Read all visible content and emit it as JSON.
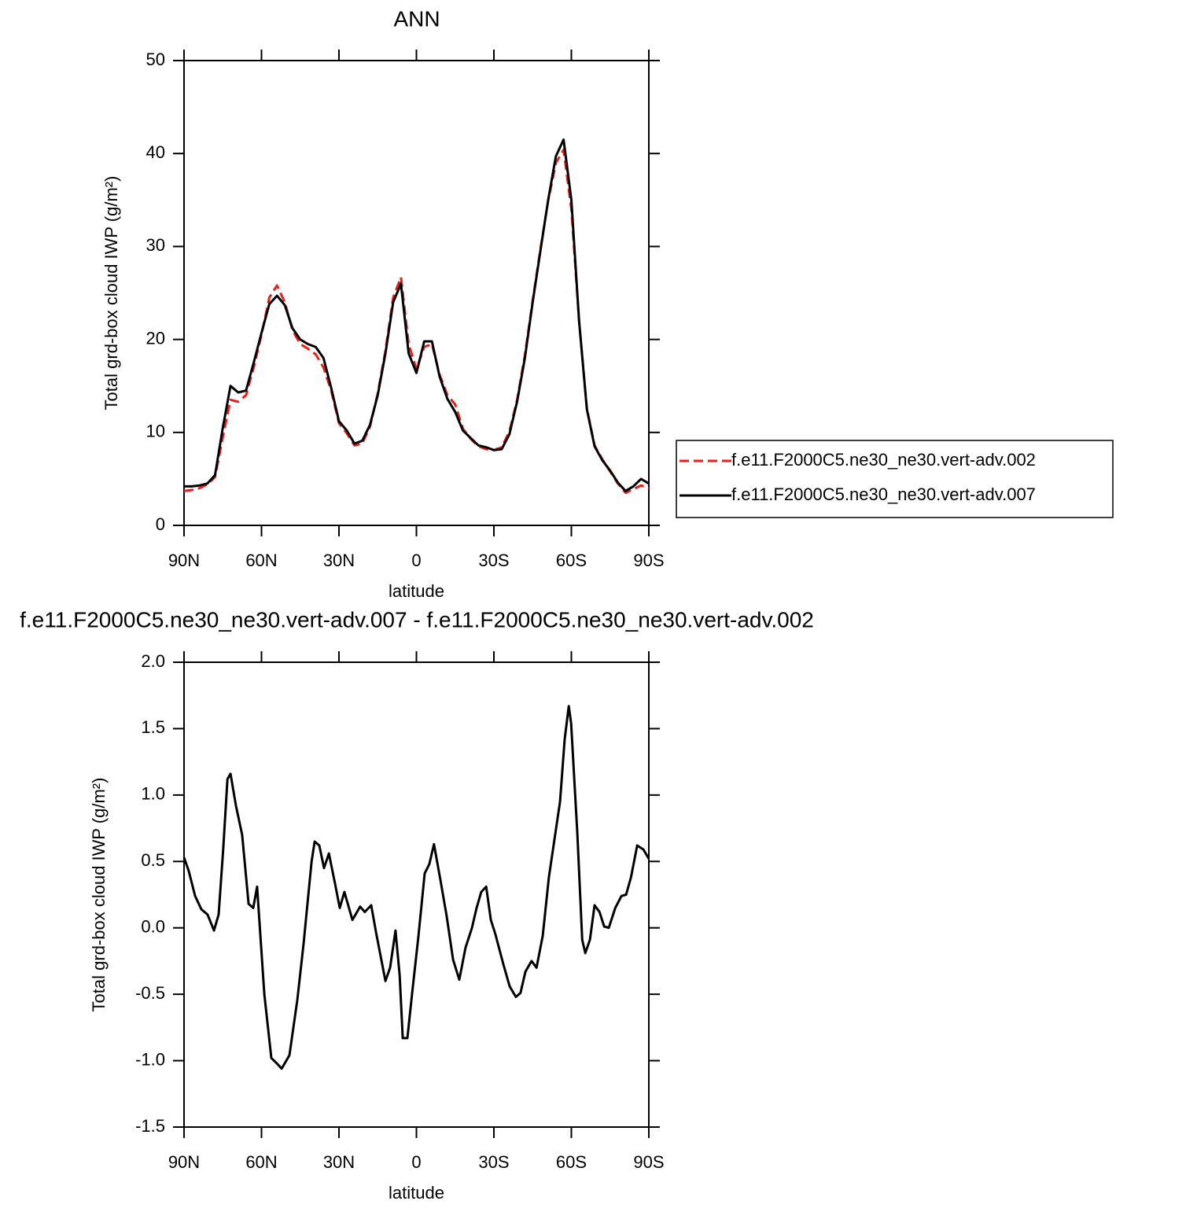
{
  "chart_data": [
    {
      "type": "line",
      "title": "ANN",
      "xlabel": "latitude",
      "ylabel": "Total grd-box cloud IWP (g/m²)",
      "x": [
        90,
        87,
        84,
        81,
        78,
        75,
        72,
        69,
        66,
        63,
        60,
        57,
        54,
        51,
        48,
        45,
        42,
        39,
        36,
        33,
        30,
        27,
        24,
        21,
        18,
        15,
        12,
        9,
        6,
        3,
        0,
        -3,
        -6,
        -9,
        -12,
        -15,
        -18,
        -21,
        -24,
        -27,
        -30,
        -33,
        -36,
        -39,
        -42,
        -45,
        -48,
        -51,
        -54,
        -57,
        -60,
        -63,
        -66,
        -69,
        -72,
        -75,
        -78,
        -81,
        -84,
        -87,
        -90
      ],
      "series": [
        {
          "name": "f.e11.F2000C5.ne30_ne30.vert-adv.002",
          "color": "#e8201c",
          "linestyle": "dashed",
          "values": [
            3.7,
            3.8,
            4.0,
            4.4,
            5.2,
            9.5,
            13.5,
            13.3,
            14,
            17,
            20.5,
            24.5,
            25.8,
            24,
            21,
            19.5,
            19,
            18.4,
            17,
            14.5,
            11,
            9.9,
            8.6,
            8.8,
            10.6,
            14.2,
            18.8,
            24.5,
            26.7,
            19.5,
            16.8,
            19.2,
            19.5,
            16.2,
            14,
            13,
            10.4,
            9.3,
            8.5,
            8.2,
            8.1,
            8.4,
            10.1,
            13.5,
            18.3,
            24.2,
            29.7,
            34.9,
            39,
            40.4,
            34,
            22,
            12.6,
            8.6,
            7.1,
            5.8,
            4.5,
            3.5,
            3.9,
            4.3,
            4.0
          ]
        },
        {
          "name": "f.e11.F2000C5.ne30_ne30.vert-adv.007",
          "color": "#000000",
          "linestyle": "solid",
          "values": [
            4.2,
            4.2,
            4.3,
            4.5,
            5.4,
            10.5,
            15.0,
            14.3,
            14.5,
            17.5,
            20.7,
            23.8,
            24.7,
            23.7,
            21.2,
            20.0,
            19.5,
            19.2,
            18.0,
            14.8,
            11.2,
            10.2,
            8.8,
            9.1,
            10.8,
            14,
            18.5,
            24,
            26,
            18.5,
            16.4,
            19.8,
            19.8,
            16,
            13.6,
            12.2,
            10.2,
            9.4,
            8.6,
            8.4,
            8.1,
            8.2,
            9.8,
            13.3,
            18,
            24,
            29.5,
            35,
            39.7,
            41.5,
            35,
            22,
            12.5,
            8.5,
            7.0,
            5.9,
            4.6,
            3.7,
            4.2,
            5.0,
            4.5
          ]
        }
      ],
      "xlim": [
        90,
        -90
      ],
      "xticks": [
        {
          "value": 90,
          "label": "90N"
        },
        {
          "value": 60,
          "label": "60N"
        },
        {
          "value": 30,
          "label": "30N"
        },
        0,
        {
          "value": -30,
          "label": "30S"
        },
        {
          "value": -60,
          "label": "60S"
        },
        {
          "value": -90,
          "label": "90S"
        }
      ],
      "ylim": [
        0,
        50
      ],
      "yticks": [
        0,
        10,
        20,
        30,
        40,
        50
      ],
      "grid": false,
      "legend": "right"
    },
    {
      "type": "line",
      "title": "f.e11.F2000C5.ne30_ne30.vert-adv.007 - f.e11.F2000C5.ne30_ne30.vert-adv.002",
      "xlabel": "latitude",
      "ylabel": "Total grd-box cloud IWP (g/m²)",
      "x": [
        90,
        88.2,
        85.7,
        83.3,
        80.9,
        78.4,
        76.6,
        74.8,
        73.2,
        72,
        69.9,
        67.5,
        65,
        63.2,
        61.7,
        58.9,
        56.2,
        54.1,
        52.2,
        49.2,
        46.1,
        43.7,
        40.6,
        39.4,
        37.6,
        35.8,
        33.9,
        31.5,
        29.7,
        27.9,
        24.8,
        21.8,
        20,
        17.5,
        15.7,
        12,
        10.2,
        8.1,
        6.5,
        5.3,
        3.5,
        1.7,
        -0.8,
        -3.2,
        -5,
        -6.8,
        -9.3,
        -11.7,
        -14.2,
        -16.6,
        -19,
        -21.5,
        -23.3,
        -25.1,
        -27,
        -28.8,
        -30.6,
        -33.6,
        -36.1,
        -38.5,
        -40.3,
        -42.2,
        -44.6,
        -46.5,
        -48.9,
        -51.3,
        -53.8,
        -55.6,
        -57.4,
        -59,
        -59.9,
        -62.3,
        -64.2,
        -65.4,
        -67.2,
        -69,
        -70.9,
        -72.7,
        -74.5,
        -77,
        -79.4,
        -81.2,
        -83.1,
        -85.5,
        -87.9,
        -90
      ],
      "series": [
        {
          "color": "#000000",
          "linestyle": "solid",
          "values": [
            0.53,
            0.43,
            0.24,
            0.14,
            0.1,
            -0.02,
            0.1,
            0.6,
            1.12,
            1.16,
            0.92,
            0.7,
            0.18,
            0.15,
            0.31,
            -0.5,
            -0.98,
            -1.02,
            -1.06,
            -0.96,
            -0.54,
            -0.12,
            0.5,
            0.65,
            0.62,
            0.45,
            0.56,
            0.33,
            0.15,
            0.27,
            0.06,
            0.16,
            0.12,
            0.17,
            -0.03,
            -0.4,
            -0.3,
            -0.02,
            -0.36,
            -0.83,
            -0.83,
            -0.5,
            -0.06,
            0.41,
            0.48,
            0.63,
            0.36,
            0.09,
            -0.24,
            -0.39,
            -0.15,
            0,
            0.15,
            0.27,
            0.31,
            0.06,
            -0.05,
            -0.27,
            -0.44,
            -0.52,
            -0.49,
            -0.33,
            -0.25,
            -0.3,
            -0.06,
            0.38,
            0.71,
            0.95,
            1.42,
            1.67,
            1.54,
            0.71,
            -0.09,
            -0.19,
            -0.09,
            0.17,
            0.12,
            0.01,
            0,
            0.15,
            0.24,
            0.25,
            0.38,
            0.62,
            0.59,
            0.52
          ]
        }
      ],
      "xlim": [
        90,
        -90
      ],
      "xticks": [
        {
          "value": 90,
          "label": "90N"
        },
        {
          "value": 60,
          "label": "60N"
        },
        {
          "value": 30,
          "label": "30N"
        },
        0,
        {
          "value": -30,
          "label": "30S"
        },
        {
          "value": -60,
          "label": "60S"
        },
        {
          "value": -90,
          "label": "90S"
        }
      ],
      "ylim": [
        -1.5,
        2
      ],
      "yticks": [
        {
          "value": -1.5,
          "label": "-1.5"
        },
        {
          "value": -1,
          "label": "-1.0"
        },
        -0.5,
        {
          "value": 0,
          "label": "0.0"
        },
        0.5,
        {
          "value": 1,
          "label": "1.0"
        },
        1.5,
        {
          "value": 2,
          "label": "2.0"
        }
      ],
      "grid": false
    }
  ]
}
